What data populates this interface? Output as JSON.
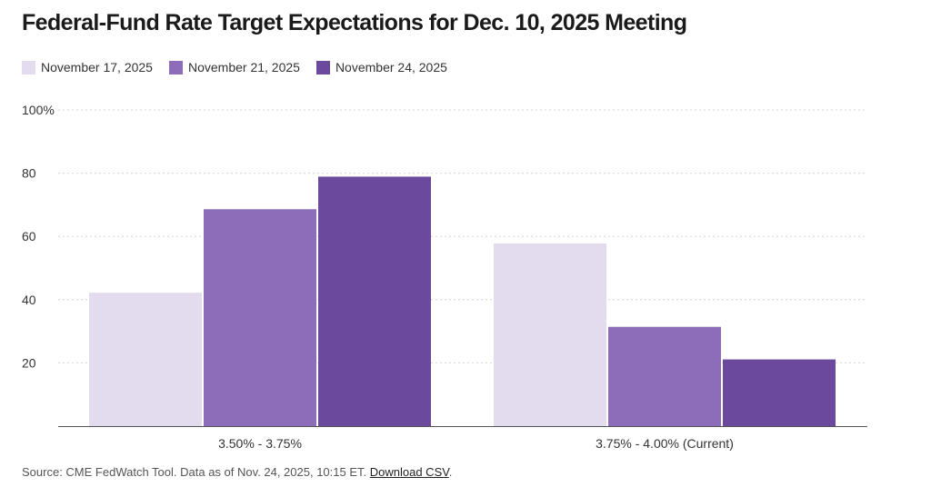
{
  "chart_data": {
    "type": "bar",
    "title": "Federal-Fund Rate Target Expectations for Dec. 10, 2025 Meeting",
    "categories": [
      "3.50% - 3.75%",
      "3.75% - 4.00% (Current)"
    ],
    "series": [
      {
        "name": "November 17, 2025",
        "color": "#e3dcee",
        "values": [
          42.2,
          57.8
        ]
      },
      {
        "name": "November 21, 2025",
        "color": "#8d6db9",
        "values": [
          68.6,
          31.4
        ]
      },
      {
        "name": "November 24, 2025",
        "color": "#6b4a9e",
        "values": [
          78.9,
          21.1
        ]
      }
    ],
    "yticks": [
      "20",
      "40",
      "60",
      "80",
      "100%"
    ],
    "ytick_values": [
      20,
      40,
      60,
      80,
      100
    ],
    "ylim": [
      0,
      100
    ],
    "xlabel": "",
    "ylabel": "",
    "grid": true,
    "legend_position": "top-left"
  },
  "footer": {
    "source_text": "Source: CME FedWatch Tool. Data as of Nov. 24, 2025, 10:15 ET.",
    "link_label": "Download CSV",
    "trailing": "."
  }
}
